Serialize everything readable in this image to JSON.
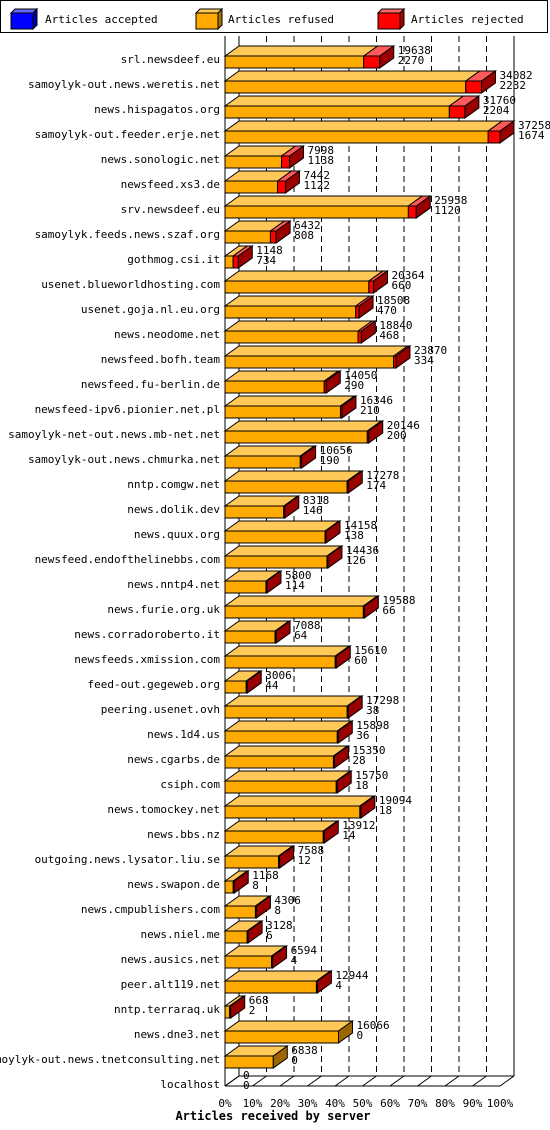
{
  "legend": {
    "accepted": "Articles accepted",
    "refused": "Articles refused",
    "rejected": "Articles rejected"
  },
  "colors": {
    "accepted": "#0000ff",
    "refused": "#ffaa00",
    "rejected": "#ff0000"
  },
  "chart_data": {
    "type": "bar",
    "orientation": "horizontal",
    "stacked": true,
    "normalized_to_max_total": true,
    "xlabel": "Articles received by server",
    "x_ticks": [
      "0%",
      "10%",
      "20%",
      "30%",
      "40%",
      "50%",
      "60%",
      "70%",
      "80%",
      "90%",
      "100%"
    ],
    "grid": true,
    "legend_position": "top",
    "servers": [
      {
        "name": "srl.newsdeef.eu",
        "refused": 19638,
        "rejected": 2270
      },
      {
        "name": "samoylyk-out.news.weretis.net",
        "refused": 34082,
        "rejected": 2232
      },
      {
        "name": "news.hispagatos.org",
        "refused": 31760,
        "rejected": 2204
      },
      {
        "name": "samoylyk-out.feeder.erje.net",
        "refused": 37258,
        "rejected": 1674
      },
      {
        "name": "news.sonologic.net",
        "refused": 7998,
        "rejected": 1138
      },
      {
        "name": "newsfeed.xs3.de",
        "refused": 7442,
        "rejected": 1122
      },
      {
        "name": "srv.newsdeef.eu",
        "refused": 25958,
        "rejected": 1120
      },
      {
        "name": "samoylyk.feeds.news.szaf.org",
        "refused": 6432,
        "rejected": 808
      },
      {
        "name": "gothmog.csi.it",
        "refused": 1148,
        "rejected": 734
      },
      {
        "name": "usenet.blueworldhosting.com",
        "refused": 20364,
        "rejected": 660
      },
      {
        "name": "usenet.goja.nl.eu.org",
        "refused": 18508,
        "rejected": 470
      },
      {
        "name": "news.neodome.net",
        "refused": 18840,
        "rejected": 468
      },
      {
        "name": "newsfeed.bofh.team",
        "refused": 23870,
        "rejected": 334
      },
      {
        "name": "newsfeed.fu-berlin.de",
        "refused": 14050,
        "rejected": 290
      },
      {
        "name": "newsfeed-ipv6.pionier.net.pl",
        "refused": 16346,
        "rejected": 210
      },
      {
        "name": "samoylyk-net-out.news.mb-net.net",
        "refused": 20146,
        "rejected": 200
      },
      {
        "name": "samoylyk-out.news.chmurka.net",
        "refused": 10656,
        "rejected": 190
      },
      {
        "name": "nntp.comgw.net",
        "refused": 17278,
        "rejected": 174
      },
      {
        "name": "news.dolik.dev",
        "refused": 8318,
        "rejected": 146
      },
      {
        "name": "news.quux.org",
        "refused": 14158,
        "rejected": 138
      },
      {
        "name": "newsfeed.endofthelinebbs.com",
        "refused": 14436,
        "rejected": 126
      },
      {
        "name": "news.nntp4.net",
        "refused": 5800,
        "rejected": 114
      },
      {
        "name": "news.furie.org.uk",
        "refused": 19588,
        "rejected": 66
      },
      {
        "name": "news.corradoroberto.it",
        "refused": 7088,
        "rejected": 64
      },
      {
        "name": "newsfeeds.xmission.com",
        "refused": 15610,
        "rejected": 60
      },
      {
        "name": "feed-out.gegeweb.org",
        "refused": 3006,
        "rejected": 44
      },
      {
        "name": "peering.usenet.ovh",
        "refused": 17298,
        "rejected": 38
      },
      {
        "name": "news.1d4.us",
        "refused": 15898,
        "rejected": 36
      },
      {
        "name": "news.cgarbs.de",
        "refused": 15350,
        "rejected": 28
      },
      {
        "name": "csiph.com",
        "refused": 15750,
        "rejected": 18
      },
      {
        "name": "news.tomockey.net",
        "refused": 19094,
        "rejected": 18
      },
      {
        "name": "news.bbs.nz",
        "refused": 13912,
        "rejected": 14
      },
      {
        "name": "outgoing.news.lysator.liu.se",
        "refused": 7588,
        "rejected": 12
      },
      {
        "name": "news.swapon.de",
        "refused": 1168,
        "rejected": 8
      },
      {
        "name": "news.cmpublishers.com",
        "refused": 4306,
        "rejected": 8
      },
      {
        "name": "news.niel.me",
        "refused": 3128,
        "rejected": 6
      },
      {
        "name": "news.ausics.net",
        "refused": 6594,
        "rejected": 4
      },
      {
        "name": "peer.alt119.net",
        "refused": 12944,
        "rejected": 4
      },
      {
        "name": "nntp.terraraq.uk",
        "refused": 668,
        "rejected": 2
      },
      {
        "name": "news.dne3.net",
        "refused": 16066,
        "rejected": 0
      },
      {
        "name": "samoylyk-out.news.tnetconsulting.net",
        "refused": 6838,
        "rejected": 0
      },
      {
        "name": "localhost",
        "refused": 0,
        "rejected": 0
      }
    ]
  }
}
